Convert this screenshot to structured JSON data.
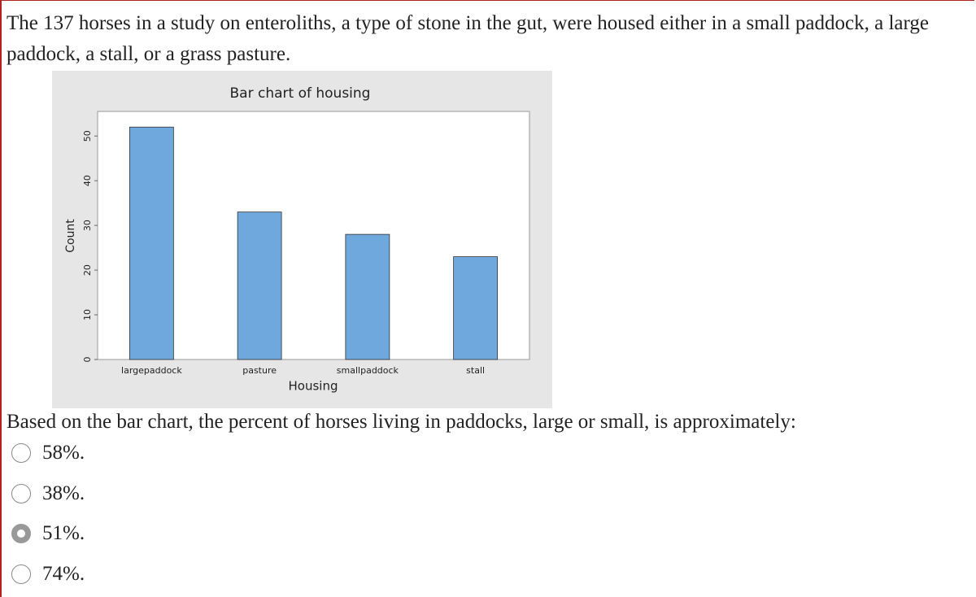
{
  "question": "The 137 horses in a study on enteroliths, a type of stone in the gut, were housed either in a small paddock, a large paddock, a stall, or a grass pasture.",
  "chart_data": {
    "type": "bar",
    "title": "Bar chart of housing",
    "x_label": "Housing",
    "y_label": "Count",
    "categories": [
      "largepaddock",
      "pasture",
      "smallpaddock",
      "stall"
    ],
    "values": [
      52,
      33,
      28,
      23
    ],
    "color": "#6fa8dc",
    "ylim": [
      0,
      55.5
    ],
    "yticks": [
      0,
      10,
      20,
      30,
      40,
      50
    ]
  },
  "prompt": "Based on the bar chart, the percent of horses living in paddocks, large or small, is approximately:",
  "options": [
    "58%.",
    "38%.",
    "51%.",
    "74%."
  ],
  "selected": 2
}
